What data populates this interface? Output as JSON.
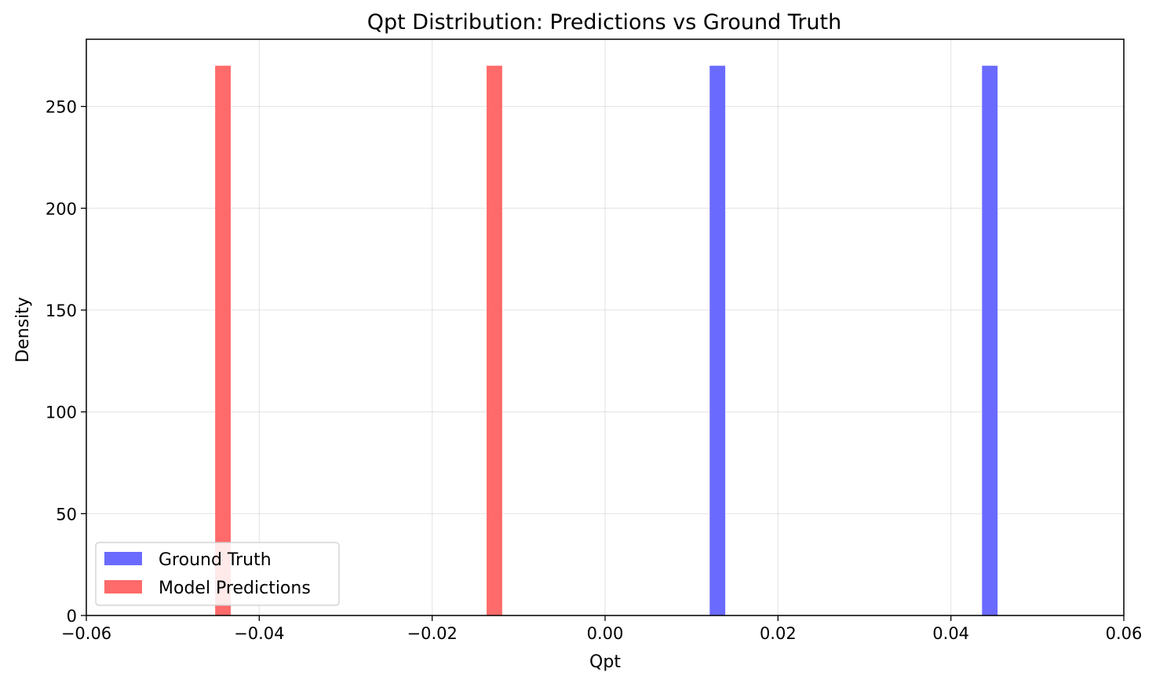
{
  "chart_data": {
    "type": "bar",
    "title": "Qpt Distribution: Predictions vs Ground Truth",
    "xlabel": "Qpt",
    "ylabel": "Density",
    "xlim": [
      -0.06,
      0.06
    ],
    "ylim": [
      0,
      283
    ],
    "xticks": [
      -0.06,
      -0.04,
      -0.02,
      0.0,
      0.02,
      0.04,
      0.06
    ],
    "xtick_labels": [
      "−0.06",
      "−0.04",
      "−0.02",
      "0.00",
      "0.02",
      "0.04",
      "0.06"
    ],
    "yticks": [
      0,
      50,
      100,
      150,
      200,
      250
    ],
    "ytick_labels": [
      "0",
      "50",
      "100",
      "150",
      "200",
      "250"
    ],
    "grid": true,
    "legend_position": "lower-left",
    "series": [
      {
        "name": "Ground Truth",
        "color": "#6a6aff",
        "bars": [
          {
            "x0": 0.0121,
            "x1": 0.0139,
            "density": 270
          },
          {
            "x0": 0.0436,
            "x1": 0.0454,
            "density": 270
          }
        ]
      },
      {
        "name": "Model Predictions",
        "color": "#ff6a6a",
        "bars": [
          {
            "x0": -0.0451,
            "x1": -0.0433,
            "density": 270
          },
          {
            "x0": -0.0137,
            "x1": -0.0119,
            "density": 270
          }
        ]
      }
    ]
  }
}
